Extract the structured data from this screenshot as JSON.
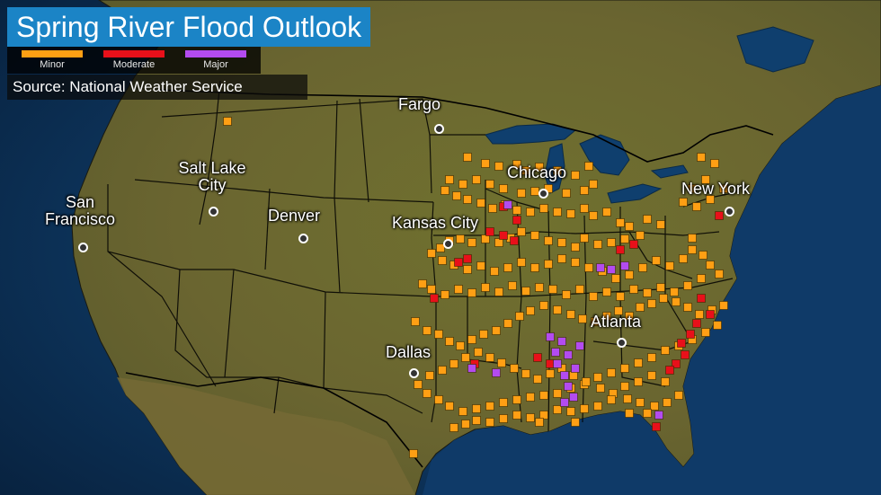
{
  "title": "Spring River Flood Outlook",
  "source": "Source: National Weather Service",
  "legend": [
    {
      "label": "Minor",
      "color": "#ff9f14"
    },
    {
      "label": "Moderate",
      "color": "#e8101a"
    },
    {
      "label": "Major",
      "color": "#b34bf0"
    }
  ],
  "cities": [
    {
      "name": "Fargo"
    },
    {
      "name": "Chicago"
    },
    {
      "name": "New York"
    },
    {
      "name": "Salt Lake City"
    },
    {
      "name": "San Francisco"
    },
    {
      "name": "Denver"
    },
    {
      "name": "Kansas City"
    },
    {
      "name": "Atlanta"
    },
    {
      "name": "Dallas"
    }
  ],
  "colors": {
    "ocean": "#0b2a4f",
    "land": "#6b6a2e",
    "border": "#000000"
  },
  "flood_markers": {
    "minor": [
      [
        253,
        135
      ],
      [
        520,
        175
      ],
      [
        540,
        182
      ],
      [
        555,
        185
      ],
      [
        575,
        183
      ],
      [
        585,
        190
      ],
      [
        600,
        186
      ],
      [
        620,
        190
      ],
      [
        640,
        195
      ],
      [
        655,
        185
      ],
      [
        660,
        205
      ],
      [
        650,
        212
      ],
      [
        630,
        215
      ],
      [
        610,
        210
      ],
      [
        595,
        213
      ],
      [
        580,
        215
      ],
      [
        560,
        210
      ],
      [
        545,
        205
      ],
      [
        530,
        200
      ],
      [
        515,
        205
      ],
      [
        500,
        200
      ],
      [
        495,
        212
      ],
      [
        508,
        218
      ],
      [
        520,
        222
      ],
      [
        535,
        226
      ],
      [
        548,
        232
      ],
      [
        562,
        228
      ],
      [
        575,
        234
      ],
      [
        590,
        236
      ],
      [
        605,
        232
      ],
      [
        620,
        236
      ],
      [
        635,
        238
      ],
      [
        650,
        232
      ],
      [
        660,
        240
      ],
      [
        675,
        236
      ],
      [
        690,
        248
      ],
      [
        700,
        252
      ],
      [
        720,
        244
      ],
      [
        735,
        250
      ],
      [
        712,
        262
      ],
      [
        695,
        266
      ],
      [
        680,
        270
      ],
      [
        665,
        272
      ],
      [
        650,
        265
      ],
      [
        640,
        275
      ],
      [
        625,
        270
      ],
      [
        610,
        268
      ],
      [
        595,
        262
      ],
      [
        580,
        258
      ],
      [
        568,
        265
      ],
      [
        555,
        270
      ],
      [
        540,
        266
      ],
      [
        525,
        270
      ],
      [
        512,
        266
      ],
      [
        500,
        268
      ],
      [
        490,
        276
      ],
      [
        480,
        282
      ],
      [
        492,
        290
      ],
      [
        505,
        295
      ],
      [
        520,
        300
      ],
      [
        535,
        296
      ],
      [
        550,
        302
      ],
      [
        565,
        298
      ],
      [
        580,
        292
      ],
      [
        595,
        298
      ],
      [
        610,
        294
      ],
      [
        625,
        288
      ],
      [
        640,
        292
      ],
      [
        655,
        298
      ],
      [
        670,
        302
      ],
      [
        685,
        310
      ],
      [
        700,
        306
      ],
      [
        715,
        298
      ],
      [
        730,
        290
      ],
      [
        745,
        296
      ],
      [
        760,
        288
      ],
      [
        770,
        278
      ],
      [
        782,
        284
      ],
      [
        790,
        295
      ],
      [
        800,
        305
      ],
      [
        780,
        310
      ],
      [
        765,
        318
      ],
      [
        750,
        325
      ],
      [
        735,
        320
      ],
      [
        720,
        326
      ],
      [
        705,
        322
      ],
      [
        690,
        330
      ],
      [
        675,
        325
      ],
      [
        660,
        330
      ],
      [
        645,
        322
      ],
      [
        630,
        328
      ],
      [
        615,
        322
      ],
      [
        600,
        320
      ],
      [
        585,
        324
      ],
      [
        570,
        318
      ],
      [
        555,
        325
      ],
      [
        540,
        320
      ],
      [
        525,
        326
      ],
      [
        510,
        322
      ],
      [
        495,
        328
      ],
      [
        480,
        322
      ],
      [
        470,
        316
      ],
      [
        462,
        358
      ],
      [
        475,
        368
      ],
      [
        488,
        372
      ],
      [
        500,
        380
      ],
      [
        512,
        385
      ],
      [
        525,
        378
      ],
      [
        538,
        372
      ],
      [
        552,
        368
      ],
      [
        565,
        360
      ],
      [
        578,
        352
      ],
      [
        590,
        346
      ],
      [
        605,
        340
      ],
      [
        620,
        345
      ],
      [
        635,
        350
      ],
      [
        648,
        355
      ],
      [
        662,
        358
      ],
      [
        675,
        352
      ],
      [
        688,
        346
      ],
      [
        700,
        352
      ],
      [
        712,
        342
      ],
      [
        725,
        338
      ],
      [
        738,
        332
      ],
      [
        752,
        336
      ],
      [
        765,
        342
      ],
      [
        778,
        350
      ],
      [
        792,
        345
      ],
      [
        805,
        340
      ],
      [
        798,
        362
      ],
      [
        785,
        370
      ],
      [
        770,
        378
      ],
      [
        755,
        385
      ],
      [
        740,
        390
      ],
      [
        725,
        398
      ],
      [
        710,
        404
      ],
      [
        695,
        410
      ],
      [
        680,
        415
      ],
      [
        665,
        420
      ],
      [
        650,
        428
      ],
      [
        635,
        432
      ],
      [
        620,
        438
      ],
      [
        605,
        440
      ],
      [
        590,
        442
      ],
      [
        575,
        445
      ],
      [
        560,
        448
      ],
      [
        545,
        452
      ],
      [
        530,
        455
      ],
      [
        515,
        458
      ],
      [
        500,
        452
      ],
      [
        488,
        445
      ],
      [
        475,
        438
      ],
      [
        465,
        428
      ],
      [
        478,
        418
      ],
      [
        492,
        412
      ],
      [
        505,
        405
      ],
      [
        518,
        398
      ],
      [
        532,
        392
      ],
      [
        545,
        398
      ],
      [
        558,
        404
      ],
      [
        572,
        410
      ],
      [
        585,
        416
      ],
      [
        598,
        422
      ],
      [
        612,
        416
      ],
      [
        625,
        410
      ],
      [
        638,
        418
      ],
      [
        652,
        425
      ],
      [
        668,
        432
      ],
      [
        682,
        438
      ],
      [
        698,
        444
      ],
      [
        712,
        448
      ],
      [
        728,
        452
      ],
      [
        742,
        448
      ],
      [
        755,
        440
      ],
      [
        740,
        425
      ],
      [
        725,
        418
      ],
      [
        710,
        425
      ],
      [
        695,
        430
      ],
      [
        680,
        445
      ],
      [
        665,
        452
      ],
      [
        650,
        455
      ],
      [
        635,
        458
      ],
      [
        620,
        456
      ],
      [
        605,
        462
      ],
      [
        590,
        465
      ],
      [
        575,
        462
      ],
      [
        560,
        466
      ],
      [
        545,
        470
      ],
      [
        530,
        468
      ],
      [
        518,
        472
      ],
      [
        505,
        476
      ],
      [
        460,
        505
      ],
      [
        780,
        175
      ],
      [
        795,
        182
      ],
      [
        785,
        200
      ],
      [
        770,
        210
      ],
      [
        760,
        225
      ],
      [
        775,
        230
      ],
      [
        790,
        222
      ],
      [
        805,
        210
      ],
      [
        770,
        265
      ],
      [
        600,
        470
      ],
      [
        640,
        470
      ],
      [
        720,
        460
      ],
      [
        700,
        460
      ]
    ],
    "moderate": [
      [
        560,
        230
      ],
      [
        575,
        245
      ],
      [
        545,
        258
      ],
      [
        560,
        262
      ],
      [
        520,
        288
      ],
      [
        510,
        292
      ],
      [
        483,
        332
      ],
      [
        690,
        278
      ],
      [
        705,
        272
      ],
      [
        780,
        332
      ],
      [
        790,
        350
      ],
      [
        775,
        360
      ],
      [
        768,
        372
      ],
      [
        758,
        382
      ],
      [
        762,
        395
      ],
      [
        752,
        405
      ],
      [
        745,
        412
      ],
      [
        598,
        398
      ],
      [
        612,
        405
      ],
      [
        528,
        405
      ],
      [
        730,
        475
      ],
      [
        800,
        240
      ],
      [
        572,
        268
      ]
    ],
    "major": [
      [
        565,
        228
      ],
      [
        668,
        298
      ],
      [
        680,
        300
      ],
      [
        695,
        296
      ],
      [
        612,
        375
      ],
      [
        625,
        380
      ],
      [
        618,
        392
      ],
      [
        632,
        395
      ],
      [
        620,
        405
      ],
      [
        640,
        410
      ],
      [
        628,
        418
      ],
      [
        632,
        430
      ],
      [
        638,
        442
      ],
      [
        628,
        448
      ],
      [
        645,
        385
      ],
      [
        525,
        410
      ],
      [
        552,
        415
      ],
      [
        733,
        462
      ]
    ]
  }
}
